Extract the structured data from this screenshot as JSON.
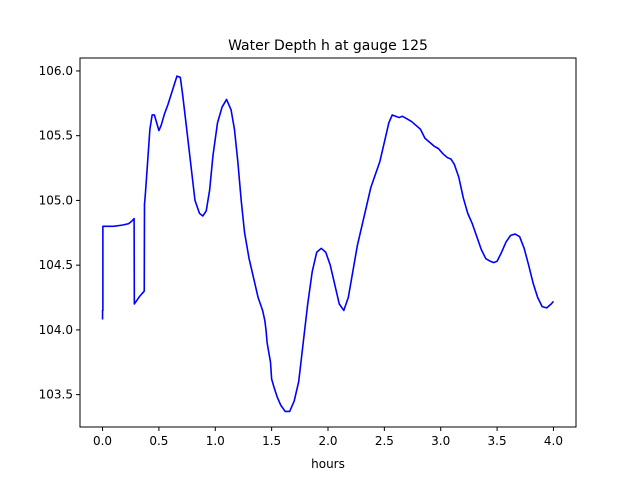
{
  "chart_data": {
    "type": "line",
    "title": "Water Depth h at gauge 125",
    "xlabel": "hours",
    "ylabel": "",
    "xlim": [
      -0.2,
      4.2
    ],
    "ylim": [
      103.25,
      106.1
    ],
    "xticks": [
      0.0,
      0.5,
      1.0,
      1.5,
      2.0,
      2.5,
      3.0,
      3.5,
      4.0
    ],
    "xtick_labels": [
      "0.0",
      "0.5",
      "1.0",
      "1.5",
      "2.0",
      "2.5",
      "3.0",
      "3.5",
      "4.0"
    ],
    "yticks": [
      103.5,
      104.0,
      104.5,
      105.0,
      105.5,
      106.0
    ],
    "ytick_labels": [
      "103.5",
      "104.0",
      "104.5",
      "105.0",
      "105.5",
      "106.0"
    ],
    "grid": false,
    "line_color": "#0000ff",
    "series": [
      {
        "x": [
          0.0,
          0.0,
          0.003,
          0.003,
          0.01,
          0.1,
          0.18,
          0.23,
          0.26,
          0.28,
          0.282,
          0.29,
          0.33,
          0.37,
          0.372,
          0.38,
          0.4,
          0.42,
          0.44,
          0.46,
          0.48,
          0.5,
          0.52,
          0.55,
          0.58,
          0.62,
          0.66,
          0.69,
          0.71,
          0.74,
          0.78,
          0.82,
          0.86,
          0.89,
          0.92,
          0.95,
          0.98,
          1.02,
          1.06,
          1.1,
          1.14,
          1.17,
          1.2,
          1.23,
          1.26,
          1.3,
          1.34,
          1.38,
          1.42,
          1.44,
          1.45,
          1.46,
          1.49,
          1.5,
          1.52,
          1.55,
          1.58,
          1.62,
          1.66,
          1.7,
          1.74,
          1.78,
          1.82,
          1.86,
          1.9,
          1.94,
          1.98,
          2.02,
          2.06,
          2.1,
          2.14,
          2.18,
          2.22,
          2.26,
          2.3,
          2.34,
          2.38,
          2.42,
          2.46,
          2.5,
          2.54,
          2.57,
          2.6,
          2.63,
          2.66,
          2.7,
          2.74,
          2.78,
          2.82,
          2.86,
          2.9,
          2.94,
          2.98,
          3.02,
          3.06,
          3.09,
          3.12,
          3.16,
          3.2,
          3.24,
          3.28,
          3.32,
          3.36,
          3.4,
          3.44,
          3.47,
          3.5,
          3.54,
          3.58,
          3.62,
          3.66,
          3.7,
          3.74,
          3.78,
          3.82,
          3.86,
          3.9,
          3.94,
          3.98,
          4.0
        ],
        "y": [
          104.08,
          104.15,
          104.15,
          104.8,
          104.8,
          104.8,
          104.81,
          104.82,
          104.84,
          104.86,
          104.2,
          104.21,
          104.26,
          104.3,
          104.97,
          105.05,
          105.3,
          105.55,
          105.66,
          105.66,
          105.6,
          105.54,
          105.58,
          105.67,
          105.74,
          105.85,
          105.96,
          105.95,
          105.82,
          105.6,
          105.3,
          105.0,
          104.9,
          104.88,
          104.92,
          105.08,
          105.35,
          105.6,
          105.72,
          105.78,
          105.7,
          105.55,
          105.3,
          105.0,
          104.75,
          104.55,
          104.4,
          104.25,
          104.15,
          104.07,
          104.0,
          103.9,
          103.75,
          103.62,
          103.56,
          103.48,
          103.42,
          103.37,
          103.37,
          103.45,
          103.6,
          103.9,
          104.2,
          104.45,
          104.6,
          104.63,
          104.6,
          104.5,
          104.35,
          104.2,
          104.15,
          104.25,
          104.45,
          104.65,
          104.8,
          104.95,
          105.1,
          105.2,
          105.3,
          105.45,
          105.6,
          105.66,
          105.65,
          105.64,
          105.65,
          105.63,
          105.61,
          105.58,
          105.55,
          105.48,
          105.45,
          105.42,
          105.4,
          105.36,
          105.33,
          105.32,
          105.28,
          105.18,
          105.02,
          104.9,
          104.82,
          104.72,
          104.62,
          104.55,
          104.53,
          104.52,
          104.53,
          104.6,
          104.68,
          104.73,
          104.74,
          104.72,
          104.63,
          104.5,
          104.36,
          104.25,
          104.18,
          104.17,
          104.2,
          104.22
        ]
      }
    ]
  }
}
